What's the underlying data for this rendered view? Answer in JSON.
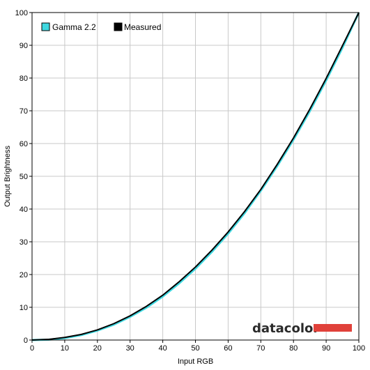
{
  "chart_data": {
    "type": "line",
    "xlabel": "Input RGB",
    "ylabel": "Output Brightness",
    "xlim": [
      0,
      100
    ],
    "ylim": [
      0,
      100
    ],
    "xticks": [
      0,
      10,
      20,
      30,
      40,
      50,
      60,
      70,
      80,
      90,
      100
    ],
    "yticks": [
      0,
      10,
      20,
      30,
      40,
      50,
      60,
      70,
      80,
      90,
      100
    ],
    "grid": true,
    "legend_position": "top-left",
    "series": [
      {
        "name": "Gamma 2.2",
        "color": "#3fd8e0",
        "x": [
          0,
          5,
          10,
          15,
          20,
          25,
          30,
          35,
          40,
          45,
          50,
          55,
          60,
          65,
          70,
          75,
          80,
          85,
          90,
          95,
          100
        ],
        "y": [
          0,
          0.1,
          0.6,
          1.5,
          2.9,
          4.7,
          7.1,
          9.9,
          13.3,
          17.3,
          21.8,
          26.9,
          32.5,
          38.7,
          45.6,
          53.1,
          61.2,
          69.9,
          79.3,
          89.3,
          100
        ]
      },
      {
        "name": "Measured",
        "color": "#000000",
        "x": [
          0,
          5,
          10,
          15,
          20,
          25,
          30,
          35,
          40,
          45,
          50,
          55,
          60,
          65,
          70,
          75,
          80,
          85,
          90,
          95,
          100
        ],
        "y": [
          0,
          0.2,
          0.8,
          1.7,
          3.1,
          5.0,
          7.4,
          10.3,
          13.7,
          17.8,
          22.3,
          27.4,
          33.0,
          39.2,
          46.0,
          53.6,
          61.7,
          70.5,
          79.9,
          89.9,
          100
        ]
      }
    ]
  },
  "watermark": {
    "text": "datacolor",
    "bar_color": "#e0413a"
  }
}
